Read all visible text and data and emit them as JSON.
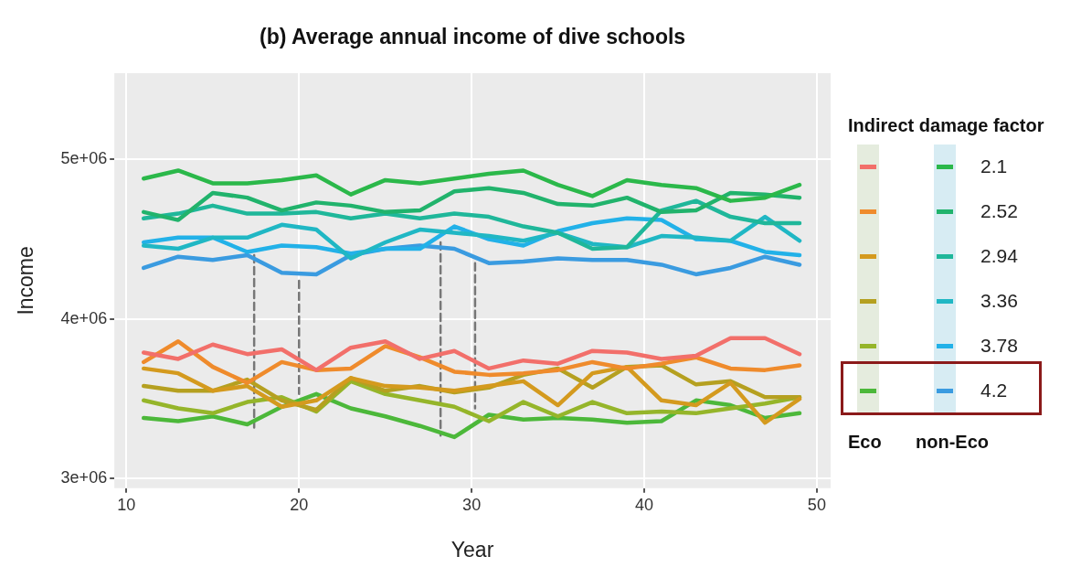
{
  "chart_data": {
    "type": "line",
    "title": "(b) Average annual income of dive schools",
    "xlabel": "Year",
    "ylabel": "Income",
    "legend_title": "Indirect damage factor",
    "legend": "right",
    "grid": true,
    "marker": "none",
    "annotations": [
      "Eco",
      "non-Eco"
    ],
    "xlim": [
      9.3,
      50.8
    ],
    "xticks": [
      10,
      20,
      30,
      40,
      50
    ],
    "ylim": [
      2940000,
      5540000
    ],
    "yticks": [
      {
        "value": 3000000,
        "label": "3e+06"
      },
      {
        "value": 4000000,
        "label": "4e+06"
      },
      {
        "value": 5000000,
        "label": "5e+06"
      }
    ],
    "x": [
      11,
      13,
      15,
      17,
      19,
      21,
      23,
      25,
      27,
      29,
      31,
      33,
      35,
      37,
      39,
      41,
      43,
      45,
      47,
      49
    ],
    "series": [
      {
        "color": "#f26f6a",
        "line_style": "solid",
        "values": [
          3790000,
          3750000,
          3840000,
          3780000,
          3810000,
          3680000,
          3820000,
          3860000,
          3750000,
          3800000,
          3690000,
          3740000,
          3720000,
          3800000,
          3790000,
          3750000,
          3770000,
          3880000,
          3880000,
          3780000
        ]
      },
      {
        "color": "#ef8b2c",
        "line_style": "solid",
        "values": [
          3730000,
          3860000,
          3700000,
          3600000,
          3730000,
          3680000,
          3690000,
          3830000,
          3760000,
          3670000,
          3650000,
          3660000,
          3680000,
          3730000,
          3690000,
          3720000,
          3760000,
          3690000,
          3680000,
          3710000
        ]
      },
      {
        "color": "#d49a1e",
        "line_style": "solid",
        "values": [
          3690000,
          3660000,
          3550000,
          3580000,
          3450000,
          3490000,
          3630000,
          3580000,
          3570000,
          3550000,
          3580000,
          3610000,
          3460000,
          3660000,
          3700000,
          3490000,
          3460000,
          3600000,
          3350000,
          3500000
        ]
      },
      {
        "color": "#b5a020",
        "line_style": "solid",
        "values": [
          3580000,
          3550000,
          3550000,
          3620000,
          3490000,
          3430000,
          3630000,
          3550000,
          3580000,
          3540000,
          3570000,
          3650000,
          3690000,
          3570000,
          3700000,
          3710000,
          3590000,
          3610000,
          3510000,
          3510000
        ]
      },
      {
        "color": "#95b52a",
        "line_style": "solid",
        "values": [
          3490000,
          3440000,
          3410000,
          3480000,
          3510000,
          3420000,
          3610000,
          3530000,
          3490000,
          3450000,
          3360000,
          3480000,
          3390000,
          3480000,
          3410000,
          3420000,
          3410000,
          3440000,
          3470000,
          3510000
        ]
      },
      {
        "color": "#4cb83a",
        "line_style": "solid",
        "values": [
          3380000,
          3360000,
          3390000,
          3340000,
          3450000,
          3530000,
          3440000,
          3390000,
          3330000,
          3260000,
          3400000,
          3370000,
          3380000,
          3370000,
          3350000,
          3360000,
          3490000,
          3460000,
          3380000,
          3410000
        ]
      },
      {
        "name": "2.1",
        "color": "#2bb84a",
        "line_style": "solid",
        "values": [
          4880000,
          4930000,
          4850000,
          4850000,
          4870000,
          4900000,
          4780000,
          4870000,
          4850000,
          4880000,
          4910000,
          4930000,
          4840000,
          4770000,
          4870000,
          4840000,
          4820000,
          4740000,
          4760000,
          4840000
        ]
      },
      {
        "name": "2.52",
        "color": "#21b36c",
        "line_style": "solid",
        "values": [
          4670000,
          4620000,
          4790000,
          4760000,
          4680000,
          4730000,
          4710000,
          4670000,
          4680000,
          4800000,
          4820000,
          4790000,
          4720000,
          4710000,
          4760000,
          4670000,
          4680000,
          4790000,
          4780000,
          4760000
        ]
      },
      {
        "name": "2.94",
        "color": "#1fb79a",
        "line_style": "solid",
        "values": [
          4630000,
          4660000,
          4710000,
          4660000,
          4660000,
          4670000,
          4630000,
          4660000,
          4630000,
          4660000,
          4640000,
          4580000,
          4540000,
          4440000,
          4450000,
          4680000,
          4740000,
          4640000,
          4600000,
          4600000
        ]
      },
      {
        "name": "3.36",
        "color": "#20b7c4",
        "line_style": "solid",
        "values": [
          4460000,
          4440000,
          4510000,
          4510000,
          4590000,
          4560000,
          4380000,
          4480000,
          4560000,
          4540000,
          4520000,
          4490000,
          4540000,
          4470000,
          4450000,
          4520000,
          4510000,
          4490000,
          4640000,
          4490000
        ]
      },
      {
        "name": "3.78",
        "color": "#22b1e8",
        "line_style": "solid",
        "values": [
          4480000,
          4510000,
          4510000,
          4420000,
          4460000,
          4450000,
          4410000,
          4440000,
          4440000,
          4580000,
          4500000,
          4460000,
          4550000,
          4600000,
          4630000,
          4620000,
          4500000,
          4490000,
          4420000,
          4400000
        ]
      },
      {
        "name": "4.2",
        "color": "#3a9be0",
        "line_style": "solid",
        "values": [
          4320000,
          4390000,
          4370000,
          4400000,
          4290000,
          4280000,
          4400000,
          4440000,
          4460000,
          4440000,
          4350000,
          4360000,
          4380000,
          4370000,
          4370000,
          4340000,
          4280000,
          4320000,
          4390000,
          4340000
        ]
      },
      {
        "color": "#777777",
        "line_style": "dashed",
        "x": [
          17.4,
          17.4
        ],
        "values": [
          4400000,
          3320000
        ]
      },
      {
        "color": "#777777",
        "line_style": "dashed",
        "x": [
          20,
          20
        ],
        "values": [
          4240000,
          3530000
        ]
      },
      {
        "color": "#777777",
        "line_style": "dashed",
        "x": [
          28.2,
          28.2
        ],
        "values": [
          4480000,
          3270000
        ]
      },
      {
        "color": "#777777",
        "line_style": "dashed",
        "x": [
          30.2,
          30.2
        ],
        "values": [
          4350000,
          3440000
        ]
      }
    ]
  }
}
